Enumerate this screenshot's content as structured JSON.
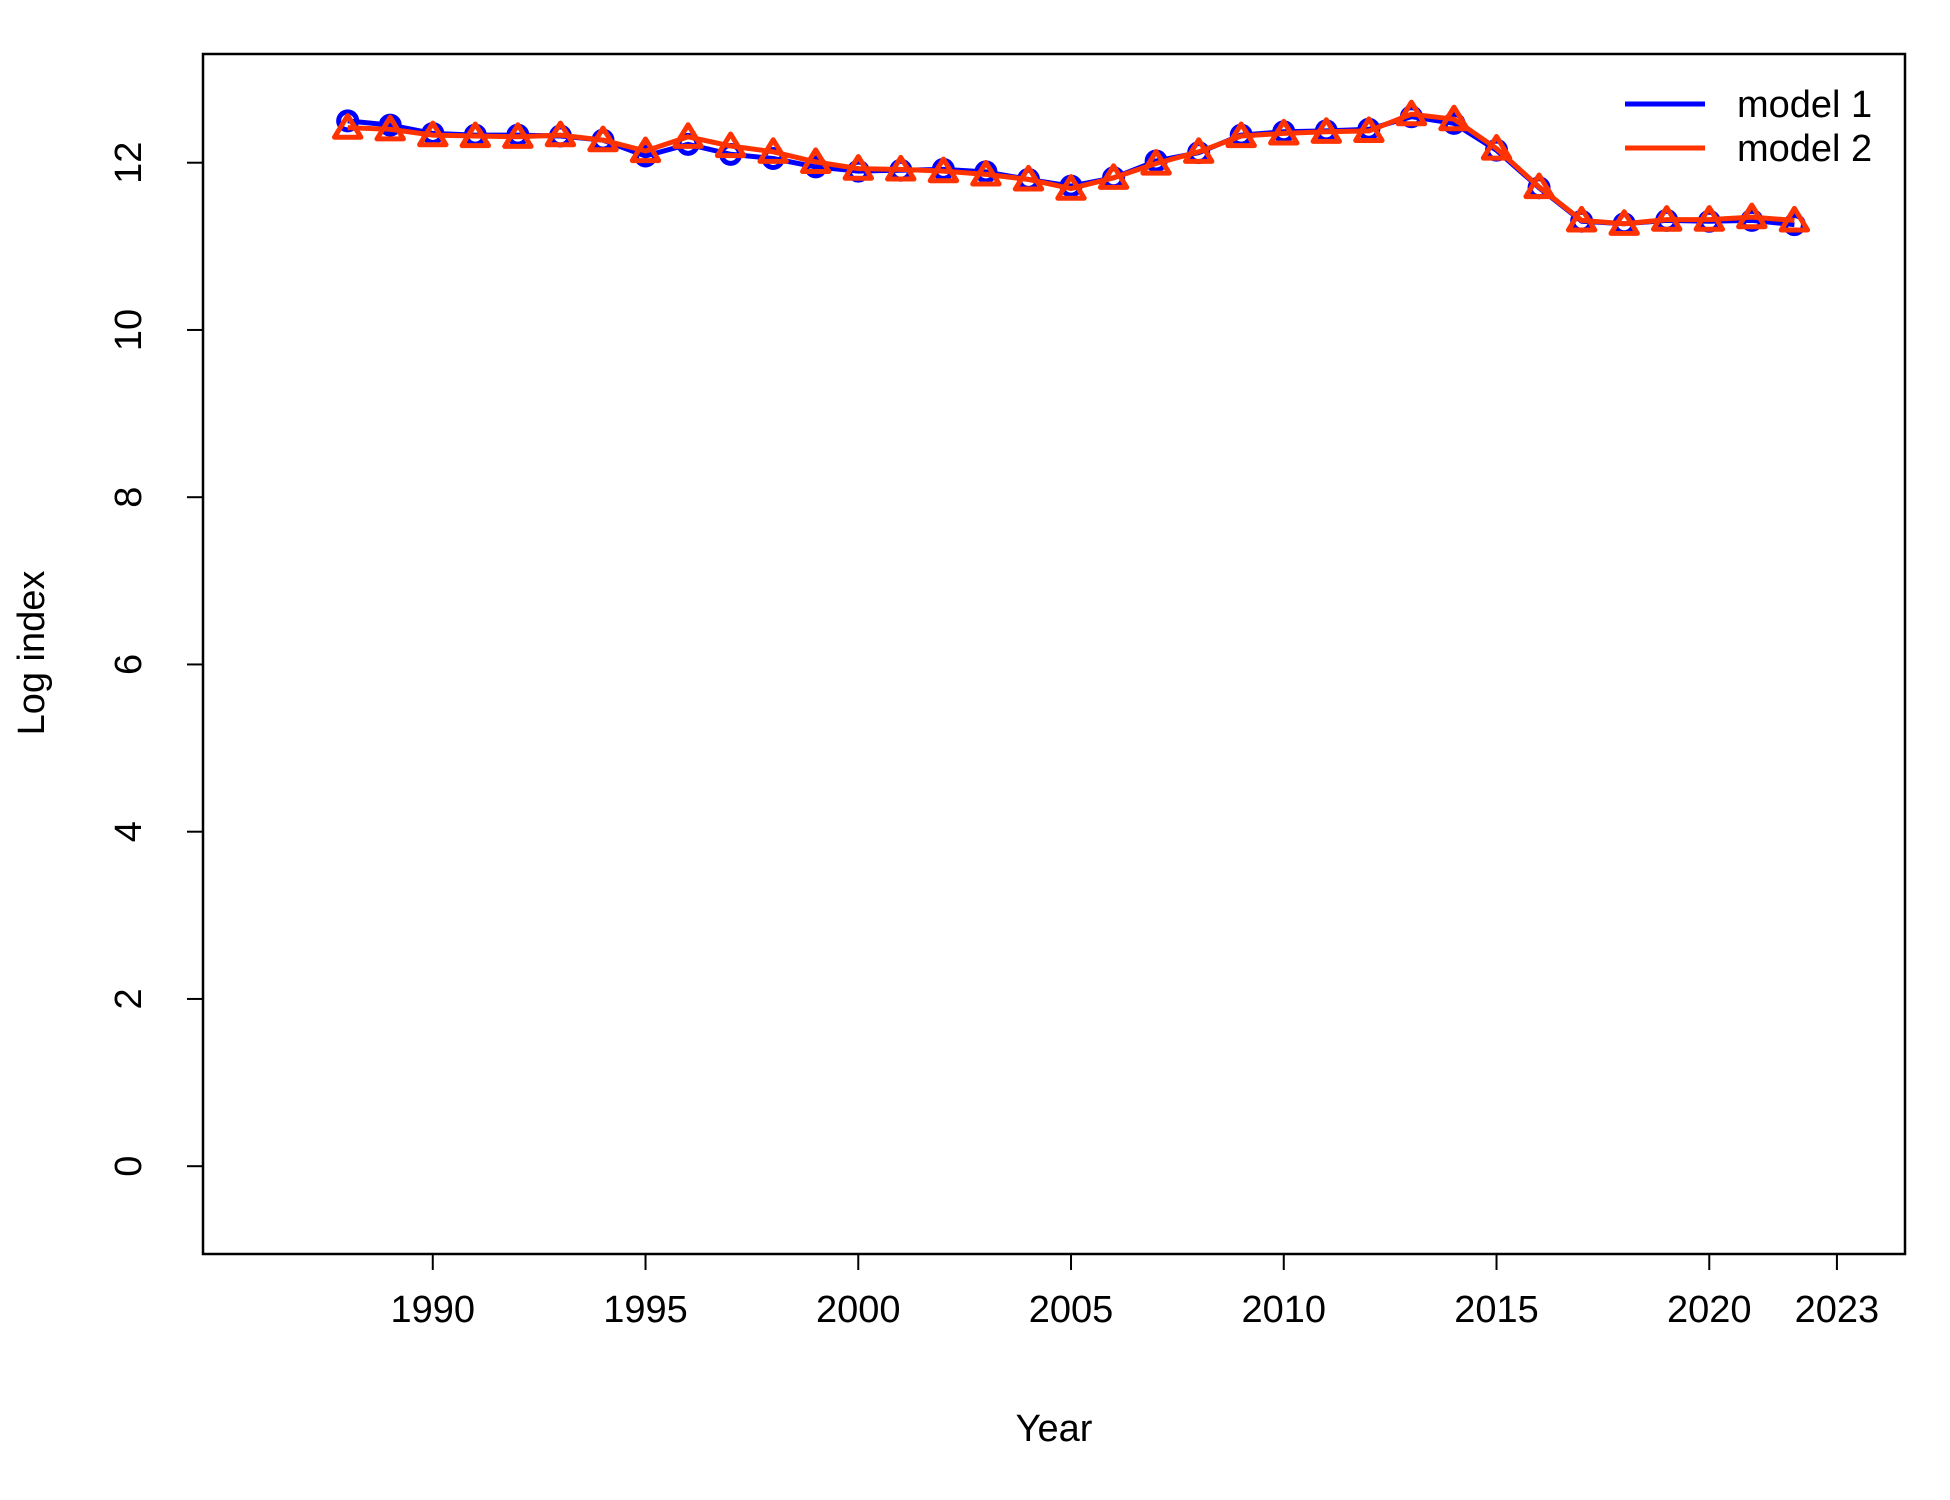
{
  "chart_data": {
    "type": "line",
    "title": "",
    "xlabel": "Year",
    "ylabel": "Log index",
    "xlim": [
      1984.6,
      2024.6
    ],
    "ylim": [
      -1.05,
      13.3
    ],
    "xticks": [
      1990,
      1995,
      2000,
      2005,
      2010,
      2015,
      2020,
      2023
    ],
    "yticks": [
      0,
      2,
      4,
      6,
      8,
      10,
      12
    ],
    "grid": false,
    "legend_position": "top-right",
    "x": [
      1988,
      1989,
      1990,
      1991,
      1992,
      1993,
      1994,
      1995,
      1996,
      1997,
      1998,
      1999,
      2000,
      2001,
      2002,
      2003,
      2004,
      2005,
      2006,
      2007,
      2008,
      2009,
      2010,
      2011,
      2012,
      2013,
      2014,
      2015,
      2016,
      2017,
      2018,
      2019,
      2020,
      2021,
      2022
    ],
    "series": [
      {
        "name": "model 1",
        "color": "#0000ff",
        "marker": "circle",
        "values": [
          12.5,
          12.45,
          12.35,
          12.33,
          12.33,
          12.32,
          12.27,
          12.08,
          12.22,
          12.1,
          12.05,
          11.95,
          11.9,
          11.91,
          11.92,
          11.89,
          11.8,
          11.72,
          11.82,
          12.02,
          12.12,
          12.33,
          12.37,
          12.38,
          12.4,
          12.55,
          12.47,
          12.15,
          11.7,
          11.3,
          11.27,
          11.31,
          11.3,
          11.31,
          11.26
        ]
      },
      {
        "name": "model 2",
        "color": "#ff3300",
        "marker": "triangle",
        "values": [
          12.42,
          12.4,
          12.33,
          12.32,
          12.31,
          12.33,
          12.27,
          12.14,
          12.31,
          12.2,
          12.13,
          12.01,
          11.93,
          11.92,
          11.9,
          11.86,
          11.8,
          11.69,
          11.82,
          11.99,
          12.13,
          12.32,
          12.35,
          12.37,
          12.38,
          12.58,
          12.52,
          12.17,
          11.71,
          11.31,
          11.27,
          11.32,
          11.32,
          11.35,
          11.31
        ]
      }
    ]
  }
}
